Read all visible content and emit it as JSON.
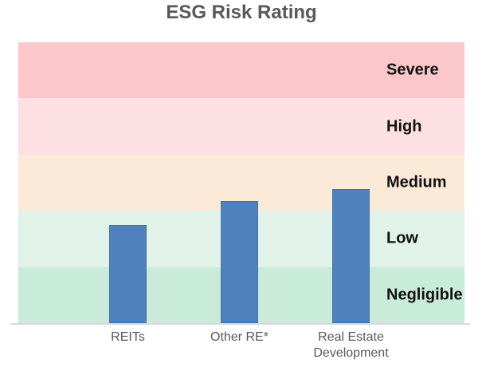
{
  "chart_data": {
    "type": "bar",
    "title": "ESG Risk Rating",
    "categories": [
      "REITs",
      "Other RE*",
      "Real Estate Development"
    ],
    "values": [
      17.5,
      21.7,
      23.9
    ],
    "ylim": [
      0,
      50
    ],
    "xlabel": "",
    "ylabel": "",
    "grid": false,
    "legend": "none",
    "bar_color": "#4f81bd",
    "bar_border_color": "#4173a9",
    "axis_line_color": "#d9d9d9",
    "title_color": "#595959",
    "category_label_color": "#595959",
    "band_label_color": "#111111",
    "risk_bands": [
      {
        "label": "Severe",
        "range": [
          40,
          50
        ],
        "color": "#fcc7ca"
      },
      {
        "label": "High",
        "range": [
          30,
          40
        ],
        "color": "#fde0e2"
      },
      {
        "label": "Medium",
        "range": [
          20,
          30
        ],
        "color": "#fcead8"
      },
      {
        "label": "Low",
        "range": [
          10,
          20
        ],
        "color": "#e1f3e9"
      },
      {
        "label": "Negligible",
        "range": [
          0,
          10
        ],
        "color": "#c9ecda"
      }
    ]
  }
}
